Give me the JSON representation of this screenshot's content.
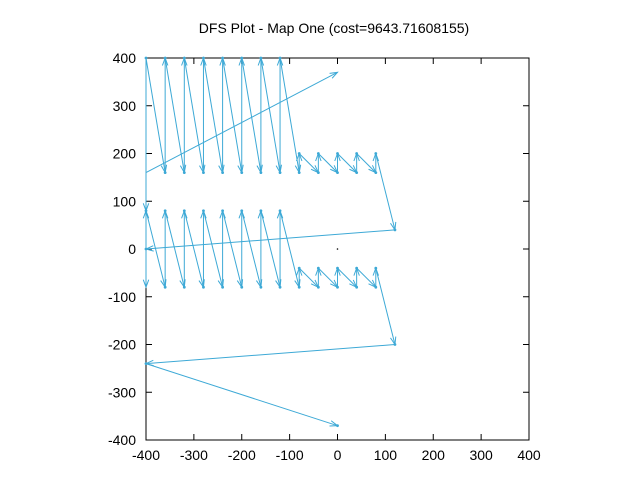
{
  "chart_data": {
    "type": "line",
    "title": "DFS Plot - Map One (cost=9643.71608155)",
    "xlabel": "",
    "ylabel": "",
    "xlim": [
      -400,
      400
    ],
    "ylim": [
      -400,
      400
    ],
    "xticks": [
      -400,
      -300,
      -200,
      -100,
      0,
      100,
      200,
      300,
      400
    ],
    "yticks": [
      -400,
      -300,
      -200,
      -100,
      0,
      100,
      200,
      300,
      400
    ],
    "grid": false,
    "line_color": "#3da9d6",
    "series": [
      {
        "values_description": "",
        "points": [
          [
            -400,
            400
          ],
          [
            -360,
            160
          ],
          [
            -360,
            400
          ],
          [
            -320,
            160
          ],
          [
            -320,
            400
          ],
          [
            -280,
            160
          ],
          [
            -280,
            400
          ],
          [
            -240,
            160
          ],
          [
            -240,
            400
          ],
          [
            -200,
            160
          ],
          [
            -200,
            400
          ],
          [
            -160,
            160
          ],
          [
            -160,
            400
          ],
          [
            -120,
            160
          ],
          [
            -120,
            400
          ],
          [
            -80,
            160
          ],
          [
            -80,
            200
          ],
          [
            -40,
            160
          ],
          [
            -40,
            200
          ],
          [
            0,
            160
          ],
          [
            0,
            200
          ],
          [
            40,
            160
          ],
          [
            40,
            200
          ],
          [
            80,
            160
          ],
          [
            80,
            200
          ],
          [
            120,
            40
          ],
          [
            -400,
            0
          ],
          [
            -400,
            80
          ],
          [
            -360,
            -80
          ],
          [
            -360,
            80
          ],
          [
            -320,
            -80
          ],
          [
            -320,
            80
          ],
          [
            -280,
            -80
          ],
          [
            -280,
            80
          ],
          [
            -240,
            -80
          ],
          [
            -240,
            80
          ],
          [
            -200,
            -80
          ],
          [
            -200,
            80
          ],
          [
            -160,
            -80
          ],
          [
            -160,
            80
          ],
          [
            -120,
            -80
          ],
          [
            -120,
            80
          ],
          [
            -80,
            -80
          ],
          [
            -80,
            -40
          ],
          [
            -40,
            -80
          ],
          [
            -40,
            -40
          ],
          [
            0,
            -80
          ],
          [
            0,
            -40
          ],
          [
            40,
            -80
          ],
          [
            40,
            -40
          ],
          [
            80,
            -80
          ],
          [
            80,
            -40
          ],
          [
            120,
            -200
          ],
          [
            -400,
            -240
          ],
          [
            0,
            -370
          ]
        ],
        "extra_segments": [
          [
            [
              -400,
              160
            ],
            [
              0,
              370
            ]
          ],
          [
            [
              -400,
              400
            ],
            [
              -400,
              80
            ]
          ],
          [
            [
              -400,
              80
            ],
            [
              -400,
              -80
            ]
          ]
        ]
      }
    ]
  }
}
